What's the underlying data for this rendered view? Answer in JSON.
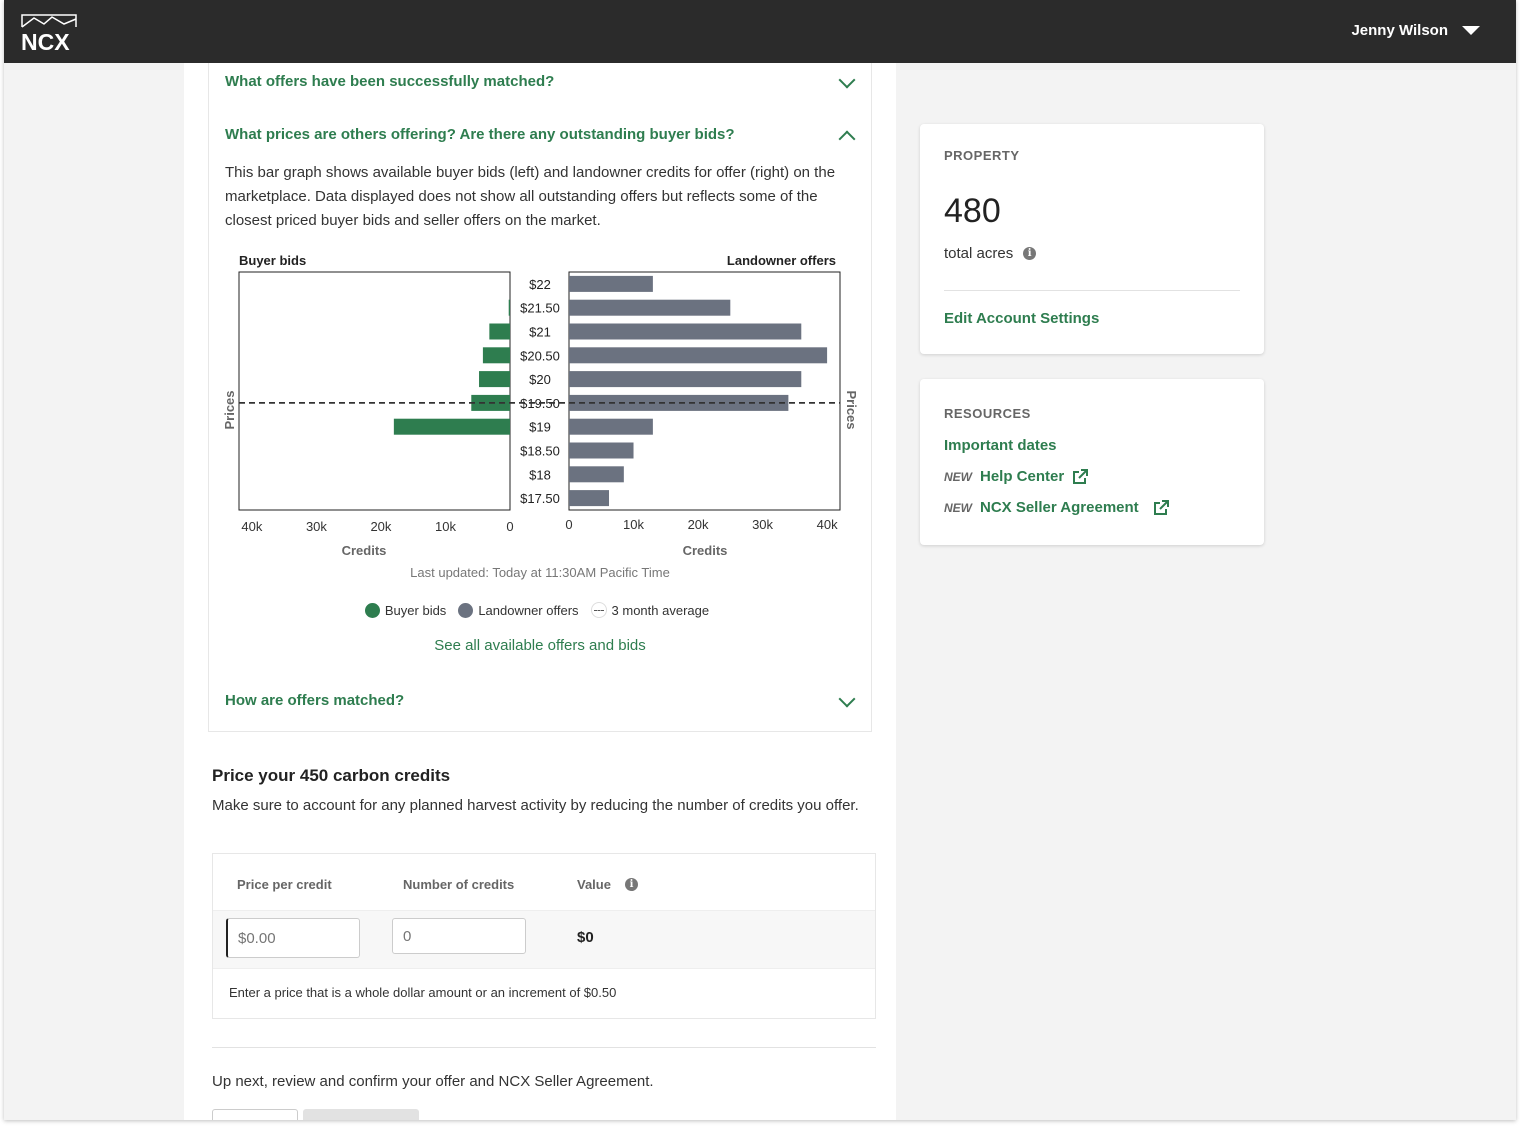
{
  "header": {
    "logo_text": "NCX",
    "user_name": "Jenny Wilson"
  },
  "faq": {
    "item1_title": "What offers have been successfully matched?",
    "item2_title": "What prices are others offering? Are there any outstanding buyer bids?",
    "item2_desc": "This bar graph shows available buyer bids (left) and landowner credits for offer (right) on the marketplace. Data displayed does not show all outstanding offers but reflects some of the closest priced buyer bids and seller offers on the market.",
    "item3_title": "How are offers matched?",
    "last_updated": "Last updated: Today at 11:30AM Pacific Time",
    "see_all": "See all available offers and bids"
  },
  "chart_data": {
    "type": "bar",
    "orientation": "horizontal",
    "categories": [
      "$22",
      "$21.50",
      "$21",
      "$20.50",
      "$20",
      "$19.50",
      "$19",
      "$18.50",
      "$18",
      "$17.50"
    ],
    "series": [
      {
        "name": "Buyer bids",
        "values": [
          0,
          200,
          3200,
          4200,
          4800,
          6000,
          18000,
          0,
          0,
          0
        ],
        "color": "#2e7d4f"
      },
      {
        "name": "Landowner offers",
        "values": [
          13000,
          25000,
          36000,
          40000,
          36000,
          34000,
          13000,
          10000,
          8500,
          6200
        ],
        "color": "#6b7280"
      }
    ],
    "three_month_average": "$19.50",
    "left_title": "Buyer bids",
    "right_title": "Landowner offers",
    "xlabel": "Credits",
    "ylabel": "Prices",
    "left_ticks": [
      "40k",
      "30k",
      "20k",
      "10k",
      "0"
    ],
    "right_ticks": [
      "0",
      "10k",
      "20k",
      "30k",
      "40k"
    ],
    "xlim": [
      0,
      42000
    ],
    "legend": [
      {
        "label": "Buyer bids",
        "color": "#2e7d4f"
      },
      {
        "label": "Landowner offers",
        "color": "#6b7280"
      },
      {
        "label": "3 month average"
      }
    ]
  },
  "pricing": {
    "title": "Price your 450 carbon credits",
    "subtitle": "Make sure to account for any planned harvest activity by reducing the number of credits you offer.",
    "col_price": "Price per credit",
    "col_number": "Number of credits",
    "col_value": "Value",
    "price_placeholder": "$0.00",
    "number_placeholder": "0",
    "value": "$0",
    "hint": "Enter a price that is a whole dollar amount or an increment of $0.50",
    "up_next": "Up next, review and confirm your offer and NCX Seller Agreement."
  },
  "property": {
    "label": "PROPERTY",
    "acres": "480",
    "acres_label": "total acres",
    "edit_link": "Edit Account Settings"
  },
  "resources": {
    "label": "RESOURCES",
    "important_dates": "Important dates",
    "new_tag": "NEW",
    "help_center": "Help Center",
    "seller_agreement": "NCX Seller Agreement"
  }
}
